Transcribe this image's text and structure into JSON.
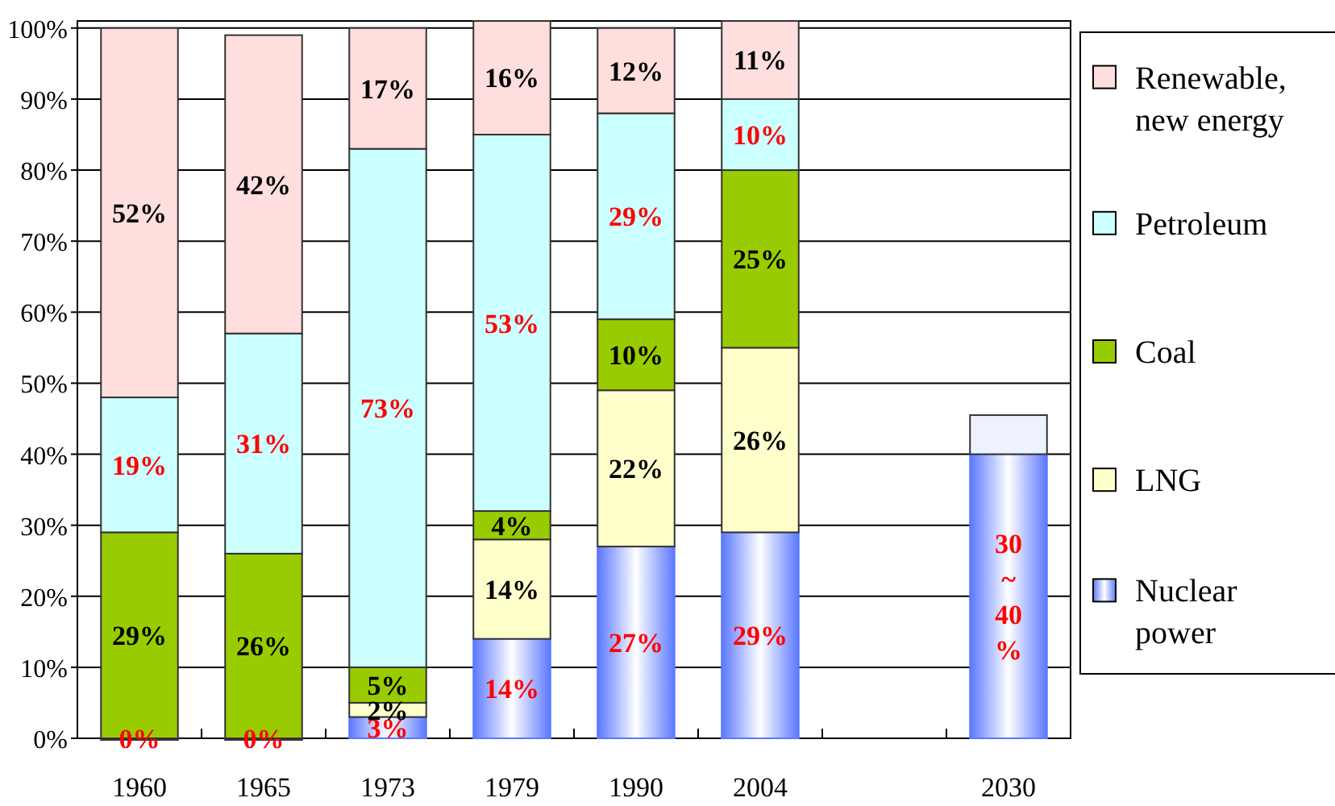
{
  "chart_data": {
    "type": "bar",
    "stacked": true,
    "categories": [
      "1960",
      "1965",
      "1973",
      "1979",
      "1990",
      "2004",
      null,
      "2030"
    ],
    "series": [
      {
        "name": "Nuclear power",
        "color": "#5b78ff",
        "values": [
          0,
          0,
          3,
          14,
          27,
          29,
          null,
          40
        ],
        "value_labels": [
          "0%",
          "0%",
          "3%",
          "14%",
          "27%",
          "29%",
          null,
          "30 ~ 40 %"
        ]
      },
      {
        "name": "LNG",
        "color": "#ffffcc",
        "values": [
          0,
          0,
          2,
          14,
          22,
          26,
          null,
          null
        ],
        "value_labels": [
          null,
          null,
          "2%",
          "14%",
          "22%",
          "26%",
          null,
          null
        ]
      },
      {
        "name": "Coal",
        "color": "#99cc00",
        "values": [
          29,
          26,
          5,
          4,
          10,
          25,
          null,
          null
        ],
        "value_labels": [
          "29%",
          "26%",
          "5%",
          "4%",
          "10%",
          "25%",
          null,
          null
        ]
      },
      {
        "name": "Petroleum",
        "color": "#ccffff",
        "values": [
          19,
          31,
          73,
          53,
          29,
          10,
          null,
          null
        ],
        "value_labels": [
          "19%",
          "31%",
          "73%",
          "53%",
          "29%",
          "10%",
          null,
          null
        ]
      },
      {
        "name": "Renewable, new energy",
        "color": "#ffdede",
        "values": [
          52,
          42,
          17,
          16,
          12,
          11,
          null,
          null
        ],
        "value_labels": [
          "52%",
          "42%",
          "17%",
          "16%",
          "12%",
          "11%",
          null,
          null
        ]
      },
      {
        "color": "#eef2ff",
        "values": [
          null,
          null,
          null,
          null,
          null,
          null,
          null,
          5.5
        ]
      }
    ],
    "ylim": [
      0,
      101
    ],
    "yticks": [
      {
        "value": 0,
        "label": "0%"
      },
      {
        "value": 10,
        "label": "10%"
      },
      {
        "value": 20,
        "label": "20%"
      },
      {
        "value": 30,
        "label": "30%"
      },
      {
        "value": 40,
        "label": "40%"
      },
      {
        "value": 50,
        "label": "50%"
      },
      {
        "value": 60,
        "label": "60%"
      },
      {
        "value": 70,
        "label": "70%"
      },
      {
        "value": 80,
        "label": "80%"
      },
      {
        "value": 90,
        "label": "90%"
      },
      {
        "value": 100,
        "label": "100%"
      }
    ],
    "grid": "y",
    "legend": "right"
  }
}
